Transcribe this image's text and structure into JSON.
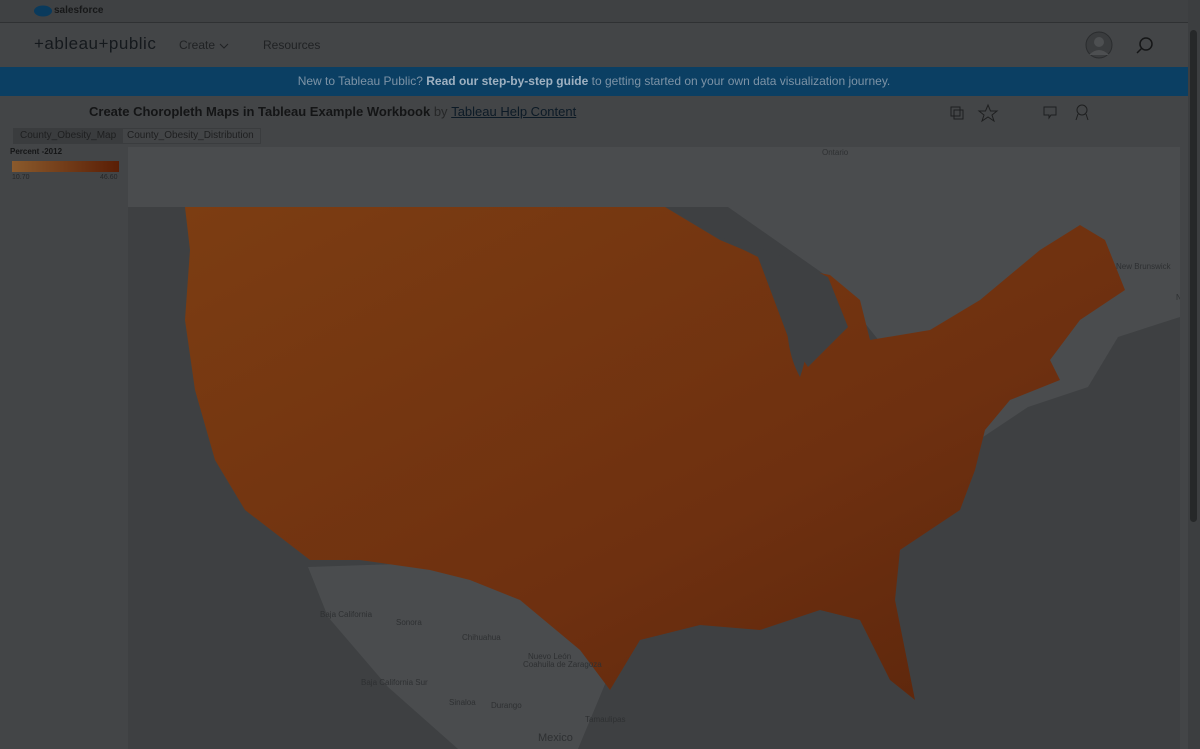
{
  "brand": "salesforce",
  "logo": "+ableau+public",
  "nav": [
    "Create",
    "Resources"
  ],
  "banner": {
    "lead": "New to Tableau Public?",
    "link": "Read our step-by-step guide",
    "rest": "to getting started on your own data visualization journey."
  },
  "workbook": {
    "title": "Create Choropleth Maps in Tableau Example Workbook",
    "by": "by",
    "author": "Tableau Help Content"
  },
  "tabs": [
    "County_Obesity_Map",
    "County_Obesity_Distribution"
  ],
  "legend": {
    "title": "Percent -2012",
    "min": "10.70",
    "max": "46.60"
  },
  "map_labels": [
    "Ontario",
    "New Brunswick",
    "Nova",
    "Baja California",
    "Sonora",
    "Chihuahua",
    "Nuevo León",
    "Coahuila de Zaragoza",
    "Baja California Sur",
    "Sinaloa",
    "Durango",
    "Tamaulipas",
    "Mexico"
  ]
}
